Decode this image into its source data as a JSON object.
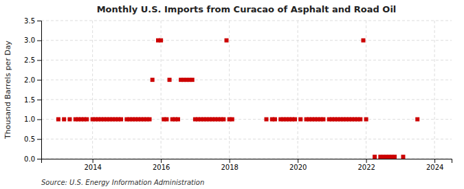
{
  "chart_data": {
    "type": "scatter",
    "title": "Monthly U.S. Imports from Curacao of Asphalt and Road Oil",
    "y_label": "Thousand Barrels per Day",
    "source": "Source: U.S. Energy Information Administration",
    "color": "#cc0000",
    "marker": "square",
    "grid": true,
    "xlim": [
      2012.5,
      2024.5
    ],
    "ylim": [
      0.0,
      3.5
    ],
    "xticks": [
      2014,
      2016,
      2018,
      2020,
      2022,
      2024
    ],
    "yticks": [
      {
        "value": 0.0,
        "label": "0.0"
      },
      0.5,
      {
        "value": 1.0,
        "label": "1.0"
      },
      1.5,
      {
        "value": 2.0,
        "label": "2.0"
      },
      2.5,
      {
        "value": 3.0,
        "label": "3.0"
      },
      3.5
    ],
    "x": [
      2013.0,
      2013.167,
      2013.333,
      2013.5,
      2013.583,
      2013.667,
      2013.75,
      2013.833,
      2014.0,
      2014.083,
      2014.167,
      2014.25,
      2014.333,
      2014.417,
      2014.5,
      2014.583,
      2014.667,
      2014.75,
      2014.833,
      2015.0,
      2015.083,
      2015.167,
      2015.25,
      2015.333,
      2015.417,
      2015.5,
      2015.583,
      2015.667,
      2015.75,
      2015.917,
      2016.0,
      2016.083,
      2016.167,
      2016.25,
      2016.333,
      2016.417,
      2016.5,
      2016.583,
      2016.667,
      2016.75,
      2016.833,
      2016.917,
      2017.0,
      2017.083,
      2017.167,
      2017.25,
      2017.333,
      2017.417,
      2017.5,
      2017.583,
      2017.667,
      2017.75,
      2017.833,
      2017.917,
      2018.0,
      2018.083,
      2019.083,
      2019.25,
      2019.333,
      2019.5,
      2019.583,
      2019.667,
      2019.75,
      2019.833,
      2019.917,
      2020.083,
      2020.25,
      2020.333,
      2020.417,
      2020.5,
      2020.583,
      2020.667,
      2020.75,
      2020.917,
      2021.0,
      2021.083,
      2021.167,
      2021.25,
      2021.333,
      2021.417,
      2021.5,
      2021.583,
      2021.667,
      2021.75,
      2021.833,
      2021.917,
      2022.0,
      2022.25,
      2022.417,
      2022.5,
      2022.583,
      2022.667,
      2022.75,
      2022.833,
      2023.083,
      2023.5
    ],
    "values": [
      1.0,
      1.0,
      1.0,
      1.0,
      1.0,
      1.0,
      1.0,
      1.0,
      1.0,
      1.0,
      1.0,
      1.0,
      1.0,
      1.0,
      1.0,
      1.0,
      1.0,
      1.0,
      1.0,
      1.0,
      1.0,
      1.0,
      1.0,
      1.0,
      1.0,
      1.0,
      1.0,
      1.0,
      2.0,
      3.0,
      3.0,
      1.0,
      1.0,
      2.0,
      1.0,
      1.0,
      1.0,
      2.0,
      2.0,
      2.0,
      2.0,
      2.0,
      1.0,
      1.0,
      1.0,
      1.0,
      1.0,
      1.0,
      1.0,
      1.0,
      1.0,
      1.0,
      1.0,
      3.0,
      1.0,
      1.0,
      1.0,
      1.0,
      1.0,
      1.0,
      1.0,
      1.0,
      1.0,
      1.0,
      1.0,
      1.0,
      1.0,
      1.0,
      1.0,
      1.0,
      1.0,
      1.0,
      1.0,
      1.0,
      1.0,
      1.0,
      1.0,
      1.0,
      1.0,
      1.0,
      1.0,
      1.0,
      1.0,
      1.0,
      1.0,
      3.0,
      1.0,
      0.05,
      0.05,
      0.05,
      0.05,
      0.05,
      0.05,
      0.05,
      0.05,
      1.0
    ]
  }
}
